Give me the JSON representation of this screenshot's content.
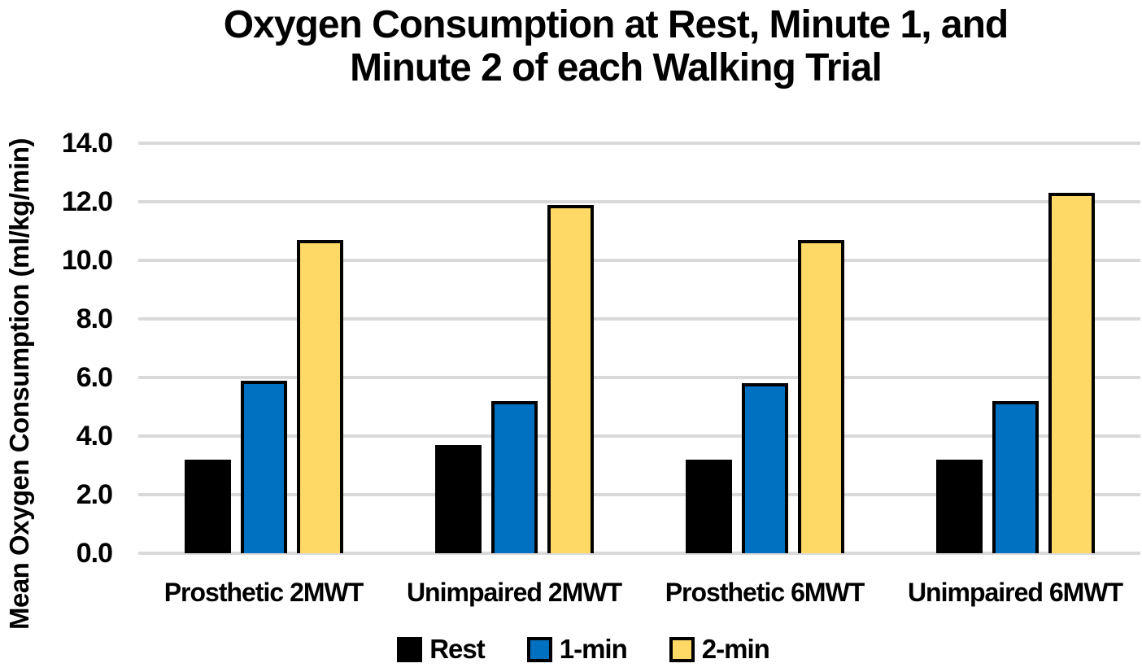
{
  "figure": {
    "title_line1": "Oxygen Consumption at Rest, Minute 1, and",
    "title_line2": "Minute 2 of each Walking Trial"
  },
  "chart_data": {
    "type": "bar",
    "title": "Oxygen Consumption at Rest, Minute 1, and Minute 2 of each Walking Trial",
    "xlabel": "",
    "ylabel": "Mean Oxygen Consumption (ml/kg/min)",
    "ylim": [
      0,
      14
    ],
    "ytick_step": 2,
    "ytick_labels": [
      "0.0",
      "2.0",
      "4.0",
      "6.0",
      "8.0",
      "10.0",
      "12.0",
      "14.0"
    ],
    "grid": true,
    "legend_position": "bottom",
    "categories": [
      "Prosthetic 2MWT",
      "Unimpaired 2MWT",
      "Prosthetic 6MWT",
      "Unimpaired 6MWT"
    ],
    "series": [
      {
        "name": "Rest",
        "color": "#000000",
        "values": [
          3.2,
          3.7,
          3.2,
          3.2
        ]
      },
      {
        "name": "1-min",
        "color": "#0070C0",
        "values": [
          5.9,
          5.2,
          5.8,
          5.2
        ]
      },
      {
        "name": "2-min",
        "color": "#FFD966",
        "values": [
          10.7,
          11.9,
          10.7,
          12.3
        ]
      }
    ],
    "colors": {
      "grid": "#D9D9D9",
      "bar_border": "#000000",
      "text": "#000000",
      "background": "#FFFFFF"
    }
  }
}
